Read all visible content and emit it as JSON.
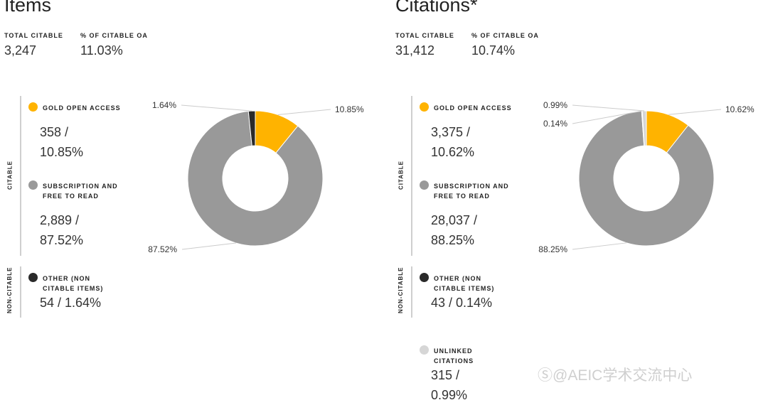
{
  "watermark": "Ⓢ@AEIC学术交流中心",
  "colors": {
    "gold": "#FFB300",
    "subscription": "#999999",
    "other": "#2a2a2a",
    "unlinked": "#d6d6d6",
    "bar": "#cfcfcf"
  },
  "group_labels": {
    "citable": "CITABLE",
    "non_citable": "NON-CITABLE"
  },
  "panels": [
    {
      "title": "Items",
      "stats": [
        {
          "label": "TOTAL CITABLE",
          "value": "3,247"
        },
        {
          "label": "% OF CITABLE OA",
          "value": "11.03%"
        }
      ],
      "legend": [
        {
          "name": "GOLD OPEN ACCESS",
          "count": "358 /",
          "pct": "10.85%",
          "color": "gold"
        },
        {
          "name": "SUBSCRIPTION AND FREE TO READ",
          "count": "2,889 /",
          "pct": "87.52%",
          "color": "subscription"
        },
        {
          "name": "OTHER (NON CITABLE ITEMS)",
          "count": "54 / 1.64%",
          "pct": "",
          "color": "other"
        }
      ]
    },
    {
      "title": "Citations*",
      "stats": [
        {
          "label": "TOTAL CITABLE",
          "value": "31,412"
        },
        {
          "label": "% OF CITABLE OA",
          "value": "10.74%"
        }
      ],
      "legend": [
        {
          "name": "GOLD OPEN ACCESS",
          "count": "3,375 /",
          "pct": "10.62%",
          "color": "gold"
        },
        {
          "name": "SUBSCRIPTION AND FREE TO READ",
          "count": "28,037 /",
          "pct": "88.25%",
          "color": "subscription"
        },
        {
          "name": "OTHER (NON CITABLE ITEMS)",
          "count": "43 / 0.14%",
          "pct": "",
          "color": "other"
        },
        {
          "name": "UNLINKED CITATIONS",
          "count": "315 /",
          "pct": "0.99%",
          "color": "unlinked"
        }
      ]
    }
  ],
  "chart_data": [
    {
      "type": "pie",
      "title": "Items",
      "labels": [
        "Gold Open Access",
        "Subscription and Free to Read",
        "Other (Non Citable Items)"
      ],
      "values": [
        10.85,
        87.52,
        1.64
      ],
      "value_labels": [
        "10.85%",
        "87.52%",
        "1.64%"
      ],
      "colors": [
        "#FFB300",
        "#999999",
        "#2a2a2a"
      ]
    },
    {
      "type": "pie",
      "title": "Citations*",
      "labels": [
        "Gold Open Access",
        "Subscription and Free to Read",
        "Other (Non Citable Items)",
        "Unlinked Citations"
      ],
      "values": [
        10.62,
        88.25,
        0.14,
        0.99
      ],
      "value_labels": [
        "10.62%",
        "88.25%",
        "0.14%",
        "0.99%"
      ],
      "colors": [
        "#FFB300",
        "#999999",
        "#2a2a2a",
        "#d6d6d6"
      ]
    }
  ]
}
